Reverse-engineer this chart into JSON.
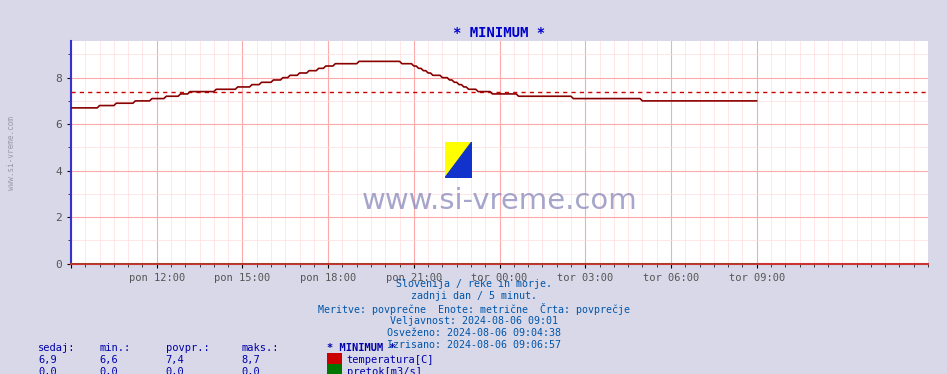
{
  "title": "* MINIMUM *",
  "title_color": "#0000cc",
  "bg_color": "#d8d8e8",
  "plot_bg_color": "#ffffff",
  "grid_color_major": "#ffaaaa",
  "grid_color_minor": "#ffdddd",
  "xlabel_ticks": [
    "pon 12:00",
    "pon 15:00",
    "pon 18:00",
    "pon 21:00",
    "tor 00:00",
    "tor 03:00",
    "tor 06:00",
    "tor 09:00"
  ],
  "xlim": [
    0,
    1152
  ],
  "ylim": [
    0,
    9.57
  ],
  "yticks": [
    0,
    2,
    4,
    6,
    8
  ],
  "avg_line_value": 7.4,
  "avg_line_color": "#cc0000",
  "temp_line_color": "#880000",
  "flow_line_color": "#007700",
  "watermark_text": "www.si-vreme.com",
  "watermark_color": "#8888bb",
  "info_lines": [
    "Slovenija / reke in morje.",
    "zadnji dan / 5 minut.",
    "Meritve: povprečne  Enote: metrične  Črta: povprečje",
    "Veljavnost: 2024-08-06 09:01",
    "Osveženo: 2024-08-06 09:04:38",
    "Izrisano: 2024-08-06 09:06:57"
  ],
  "info_color": "#0055aa",
  "table_headers": [
    "sedaj:",
    "min.:",
    "povpr.:",
    "maks.:",
    "* MINIMUM *"
  ],
  "table_row1_vals": [
    "6,9",
    "6,6",
    "7,4",
    "8,7"
  ],
  "table_row1_label": "temperatura[C]",
  "table_row2_vals": [
    "0,0",
    "0,0",
    "0,0",
    "0,0"
  ],
  "table_row2_label": "pretok[m3/s]",
  "table_color": "#0000aa",
  "legend_temp_color": "#cc0000",
  "legend_flow_color": "#007700",
  "left_watermark": "www.si-vreme.com",
  "left_watermark_color": "#9999aa"
}
